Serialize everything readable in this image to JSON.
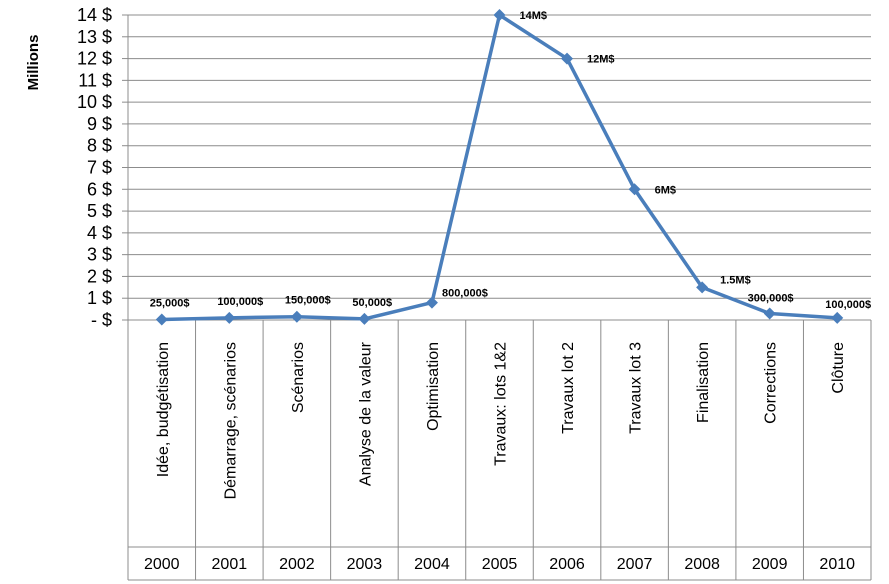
{
  "chart_data": {
    "type": "line",
    "ylabel": "Millions",
    "ylim": [
      0,
      14
    ],
    "grid": true,
    "y_ticks": [
      "- $",
      "1 $",
      "2 $",
      "3 $",
      "4 $",
      "5 $",
      "6 $",
      "7 $",
      "8 $",
      "9 $",
      "10 $",
      "11 $",
      "12 $",
      "13 $",
      "14 $"
    ],
    "categories": [
      "Idée, budgétisation",
      "Démarrage, scénarios",
      "Scénarios",
      "Analyse de la valeur",
      "Optimisation",
      "Travaux: lots 1&2",
      "Travaux lot 2",
      "Travaux lot 3",
      "Finalisation",
      "Corrections",
      "Clôture"
    ],
    "years": [
      "2000",
      "2001",
      "2002",
      "2003",
      "2004",
      "2005",
      "2006",
      "2007",
      "2008",
      "2009",
      "2010"
    ],
    "series": [
      {
        "values": [
          0.025,
          0.1,
          0.15,
          0.05,
          0.8,
          14,
          12,
          6,
          1.5,
          0.3,
          0.1
        ],
        "labels": [
          "25,000$",
          "100,000$",
          "150,000$",
          "50,000$",
          "800,000$",
          "14M$",
          "12M$",
          "6M$",
          "1.5M$",
          "300,000$",
          "100,000$"
        ],
        "color": "#4a7ebb"
      }
    ]
  }
}
